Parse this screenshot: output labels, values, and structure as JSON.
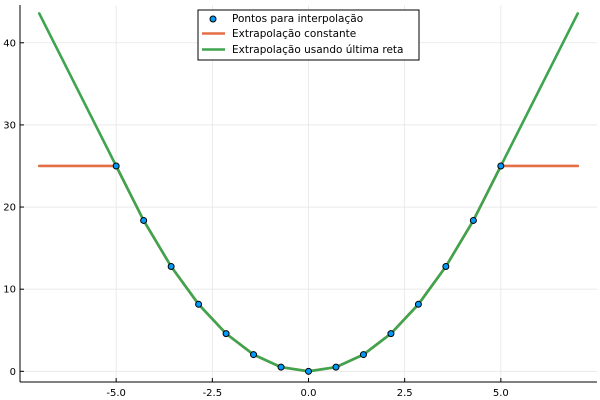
{
  "chart_data": {
    "type": "line",
    "title": "",
    "xlabel": "",
    "ylabel": "",
    "xlim": [
      -7.5,
      7.5
    ],
    "ylim": [
      -1.3,
      44.6
    ],
    "grid": true,
    "legend_position": "top-center",
    "x_ticks": [
      {
        "value": -5.0,
        "label": "-5.0"
      },
      {
        "value": -2.5,
        "label": "-2.5"
      },
      {
        "value": 0.0,
        "label": "0.0"
      },
      {
        "value": 2.5,
        "label": "2.5"
      },
      {
        "value": 5.0,
        "label": "5.0"
      }
    ],
    "y_ticks": [
      {
        "value": 0,
        "label": "0"
      },
      {
        "value": 10,
        "label": "10"
      },
      {
        "value": 20,
        "label": "20"
      },
      {
        "value": 30,
        "label": "30"
      },
      {
        "value": 40,
        "label": "40"
      }
    ],
    "series": [
      {
        "name": "Pontos para interpolação",
        "kind": "scatter",
        "color": "#009AFA",
        "x": [
          -5.0,
          -4.286,
          -3.571,
          -2.857,
          -2.143,
          -1.429,
          -0.714,
          0.0,
          0.714,
          1.429,
          2.143,
          2.857,
          3.571,
          4.286,
          5.0
        ],
        "y": [
          25.0,
          18.37,
          12.76,
          8.16,
          4.59,
          2.04,
          0.51,
          0.0,
          0.51,
          2.04,
          4.59,
          8.16,
          12.76,
          18.37,
          25.0
        ]
      },
      {
        "name": "Extrapolação constante",
        "kind": "line",
        "color": "#E26F46",
        "x": [
          -7.0,
          -5.0,
          -4.286,
          -3.571,
          -2.857,
          -2.143,
          -1.429,
          -0.714,
          0.0,
          0.714,
          1.429,
          2.143,
          2.857,
          3.571,
          4.286,
          5.0,
          7.0
        ],
        "y": [
          25.0,
          25.0,
          18.37,
          12.76,
          8.16,
          4.59,
          2.04,
          0.51,
          0.0,
          0.51,
          2.04,
          4.59,
          8.16,
          12.76,
          18.37,
          25.0,
          25.0
        ]
      },
      {
        "name": "Extrapolação usando última reta",
        "kind": "line",
        "color": "#3EA44E",
        "x": [
          -7.0,
          -5.0,
          -4.286,
          -3.571,
          -2.857,
          -2.143,
          -1.429,
          -0.714,
          0.0,
          0.714,
          1.429,
          2.143,
          2.857,
          3.571,
          4.286,
          5.0,
          7.0
        ],
        "y": [
          43.57,
          25.0,
          18.37,
          12.76,
          8.16,
          4.59,
          2.04,
          0.51,
          0.0,
          0.51,
          2.04,
          4.59,
          8.16,
          12.76,
          18.37,
          25.0,
          43.57
        ]
      }
    ]
  }
}
